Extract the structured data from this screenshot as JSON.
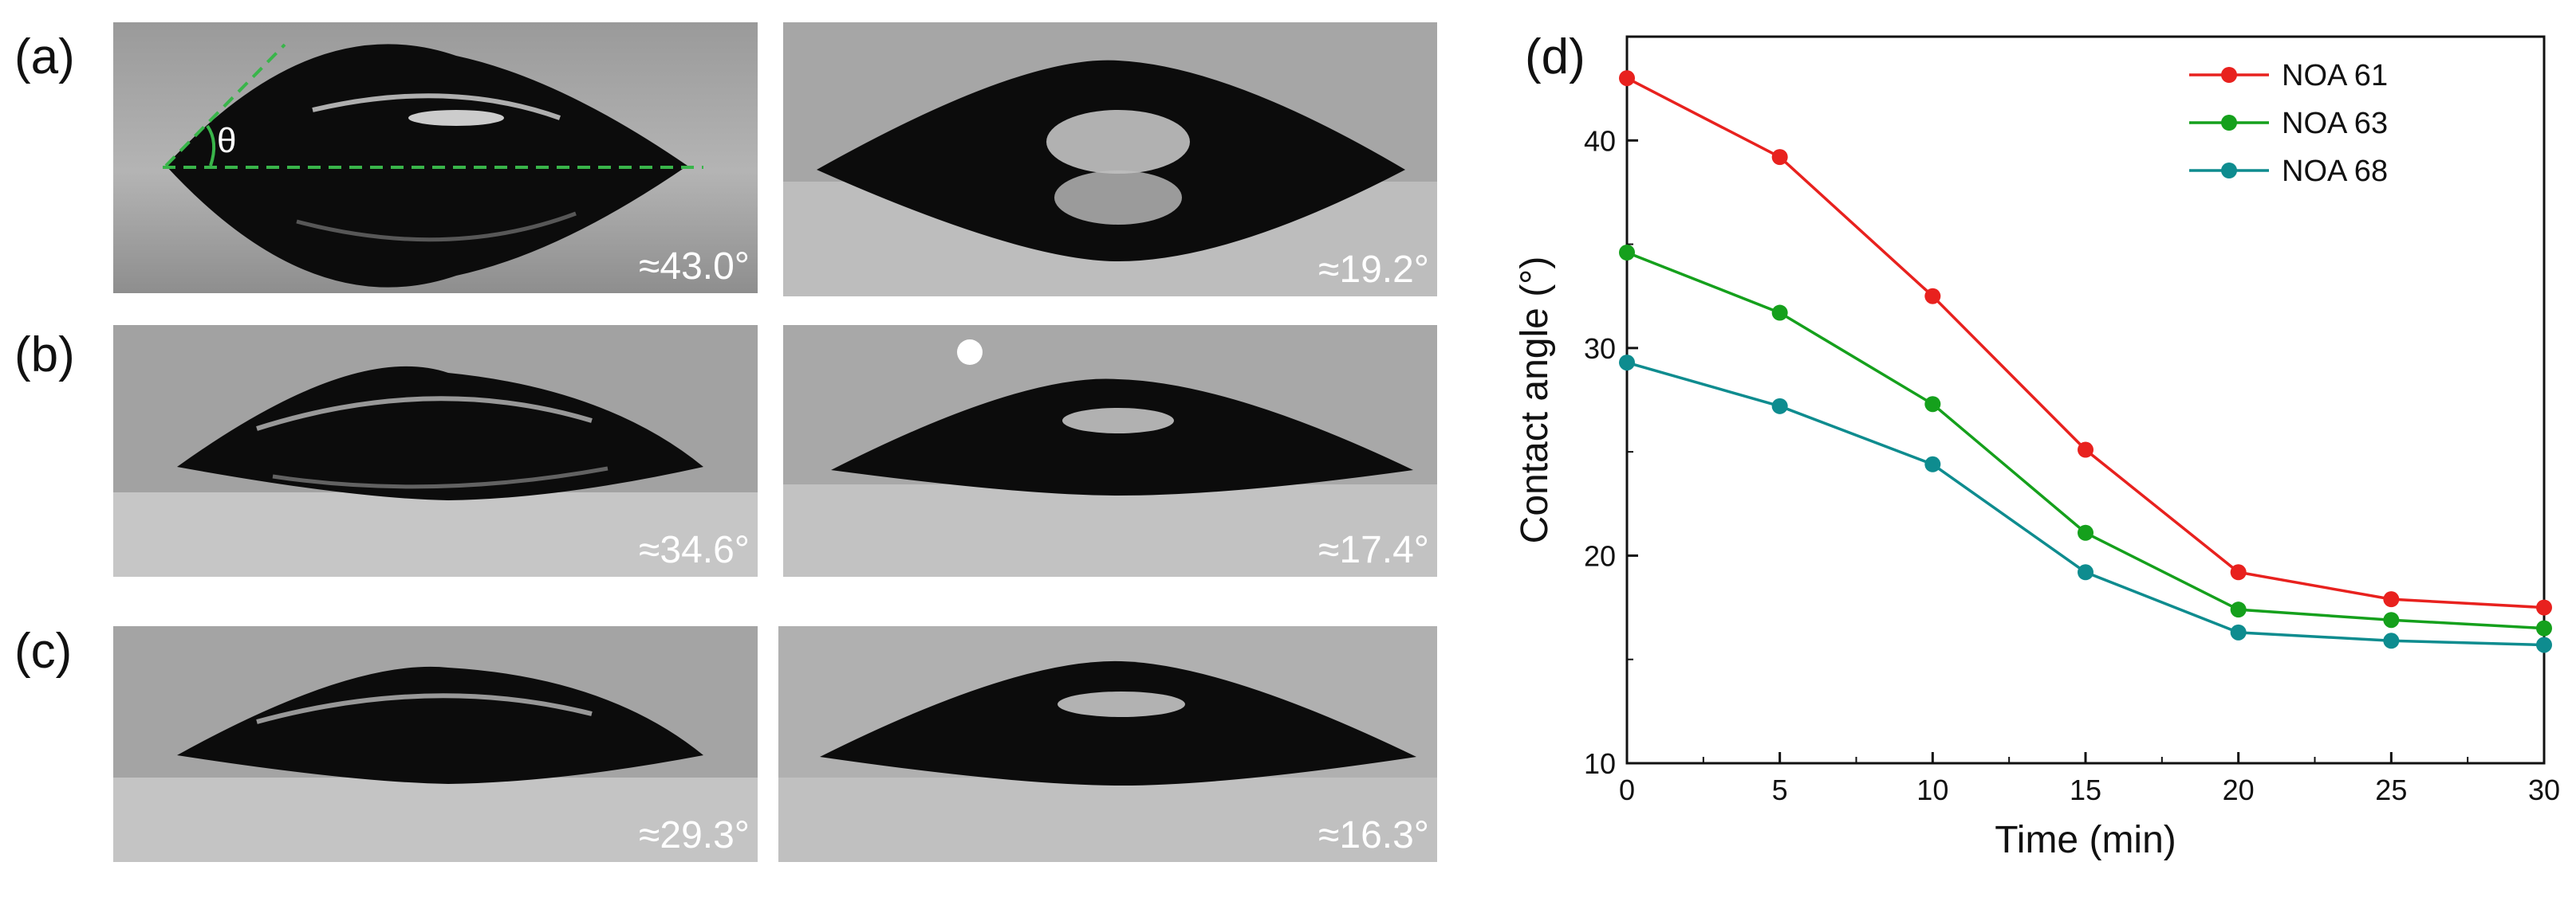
{
  "panels": {
    "a": "(a)",
    "b": "(b)",
    "c": "(c)",
    "d": "(d)"
  },
  "photos": {
    "a_left": {
      "angle": "≈43.0°",
      "theta": "θ"
    },
    "a_right": {
      "angle": "≈19.2°"
    },
    "b_left": {
      "angle": "≈34.6°"
    },
    "b_right": {
      "angle": "≈17.4°"
    },
    "c_left": {
      "angle": "≈29.3°"
    },
    "c_right": {
      "angle": "≈16.3°"
    }
  },
  "colors": {
    "NOA 61": "#e8211e",
    "NOA 63": "#15a01c",
    "NOA 68": "#0e8c8f",
    "guide": "#39b54a"
  },
  "chart_data": {
    "type": "line",
    "xlabel": "Time (min)",
    "ylabel": "Contact angle (°)",
    "x": [
      0,
      5,
      10,
      15,
      20,
      25,
      30
    ],
    "xlim": [
      0,
      30
    ],
    "ylim": [
      10,
      45
    ],
    "xticks": [
      0,
      5,
      10,
      15,
      20,
      25,
      30
    ],
    "yticks": [
      10,
      20,
      30,
      40
    ],
    "legend_position": "top-right",
    "grid": false,
    "series": [
      {
        "name": "NOA 61",
        "values": [
          43.0,
          39.2,
          32.5,
          25.1,
          19.2,
          17.9,
          17.5
        ]
      },
      {
        "name": "NOA 63",
        "values": [
          34.6,
          31.7,
          27.3,
          21.1,
          17.4,
          16.9,
          16.5
        ]
      },
      {
        "name": "NOA 68",
        "values": [
          29.3,
          27.2,
          24.4,
          19.2,
          16.3,
          15.9,
          15.7
        ]
      }
    ]
  }
}
